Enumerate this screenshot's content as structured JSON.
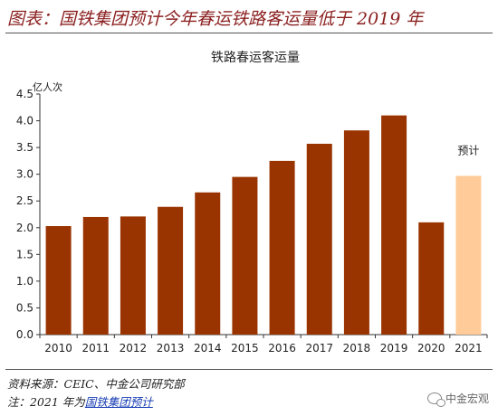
{
  "header": {
    "title": "图表：国铁集团预计今年春运铁路客运量低于 2019 年"
  },
  "chart_data": {
    "type": "bar",
    "title": "铁路春运客运量",
    "ylabel": "亿人次",
    "xlabel": "",
    "ylim": [
      0,
      4.5
    ],
    "yticks": [
      "0.0",
      "0.5",
      "1.0",
      "1.5",
      "2.0",
      "2.5",
      "3.0",
      "3.5",
      "4.0",
      "4.5"
    ],
    "categories": [
      "2010",
      "2011",
      "2012",
      "2013",
      "2014",
      "2015",
      "2016",
      "2017",
      "2018",
      "2019",
      "2020",
      "2021"
    ],
    "values": [
      2.03,
      2.2,
      2.21,
      2.39,
      2.66,
      2.95,
      3.25,
      3.57,
      3.82,
      4.1,
      2.1,
      2.97
    ],
    "colors": [
      "#993300",
      "#993300",
      "#993300",
      "#993300",
      "#993300",
      "#993300",
      "#993300",
      "#993300",
      "#993300",
      "#993300",
      "#993300",
      "#ffcc99"
    ],
    "annotation": {
      "text": "预计",
      "category": "2021"
    },
    "grid": false,
    "legend": "none"
  },
  "notes": {
    "source": "资料来源：CEIC、中金公司研究部",
    "footnote_prefix": "注：2021 年为",
    "footnote_link": "国铁集团预计"
  },
  "watermark": {
    "text": "中金宏观",
    "icon": "wechat-icon"
  }
}
